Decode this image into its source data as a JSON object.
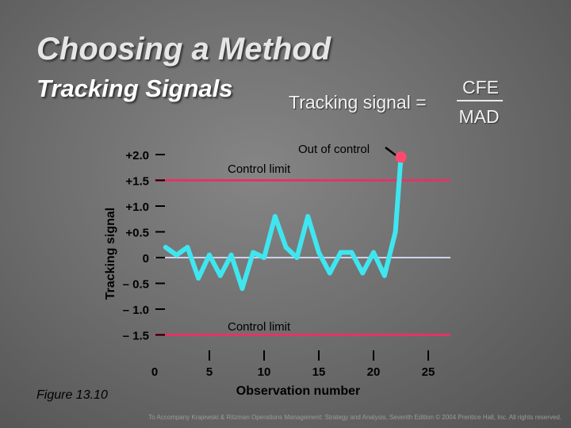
{
  "slide": {
    "title": "Choosing a Method",
    "subtitle": "Tracking Signals",
    "formula": {
      "lhs": "Tracking signal =",
      "numerator": "CFE",
      "denominator": "MAD"
    },
    "figure_label": "Figure 13.10",
    "footer": "To Accompany Krajewski & Ritzman Operations Management: Strategy and Analysis, Seventh Edition © 2004 Prentice Hall, Inc. All rights reserved."
  },
  "colors": {
    "series_line": "#3fe6f0",
    "control_limit": "#e33466",
    "zero_line": "#cfd3ec",
    "out_of_control_marker": "#ff4a6e",
    "text": "#000000"
  },
  "chart_data": {
    "type": "line",
    "xlabel": "Observation number",
    "ylabel": "Tracking signal",
    "xlim": [
      0,
      25
    ],
    "ylim": [
      -1.5,
      2.0
    ],
    "x_ticks": [
      0,
      5,
      10,
      15,
      20,
      25
    ],
    "x_tick_labels": [
      "0",
      "5",
      "10",
      "15",
      "20",
      "25"
    ],
    "y_ticks": [
      2.0,
      1.5,
      1.0,
      0.5,
      0,
      -0.5,
      -1.0,
      -1.5
    ],
    "y_tick_labels": [
      "+2.0",
      "+1.5",
      "+1.0",
      "+0.5",
      "0",
      "– 0.5",
      "– 1.0",
      "– 1.5"
    ],
    "control_limits": [
      1.5,
      -1.5
    ],
    "control_limit_label": "Control limit",
    "series": [
      {
        "x": [
          1,
          2,
          3,
          4,
          5,
          6,
          7,
          8,
          9,
          10,
          11,
          12,
          13,
          14,
          15,
          16,
          17,
          18,
          19,
          20,
          21,
          22
        ],
        "values": [
          0.2,
          0.05,
          0.2,
          -0.4,
          0.05,
          -0.35,
          0.05,
          -0.6,
          0.1,
          0.0,
          0.8,
          0.2,
          0.0,
          0.8,
          0.1,
          -0.3,
          0.1,
          0.1,
          -0.3,
          0.1,
          -0.35,
          0.5
        ]
      }
    ],
    "out_of_control_point": {
      "x": 22.5,
      "y": 1.95
    },
    "annotations": {
      "out_of_control": "Out of control"
    },
    "grid": false,
    "legend": "none"
  }
}
